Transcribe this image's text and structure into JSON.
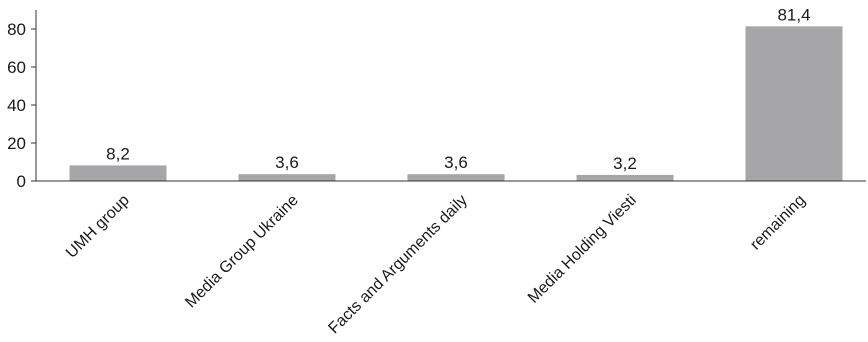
{
  "chart_data": {
    "type": "bar",
    "categories": [
      "UMH group",
      "Media Group Ukraine",
      "Facts and Arguments daily",
      "Media Holding Viesti",
      "remaining"
    ],
    "values": [
      8.2,
      3.6,
      3.6,
      3.2,
      81.4
    ],
    "data_labels": [
      "8,2",
      "3,6",
      "3,6",
      "3,2",
      "81,4"
    ],
    "y_ticks": [
      0,
      20,
      40,
      60,
      80
    ],
    "ylim": [
      0,
      90
    ],
    "title": "",
    "xlabel": "",
    "ylabel": "",
    "grid": false,
    "legend": "none",
    "bar_color": "#a6a6a8"
  }
}
